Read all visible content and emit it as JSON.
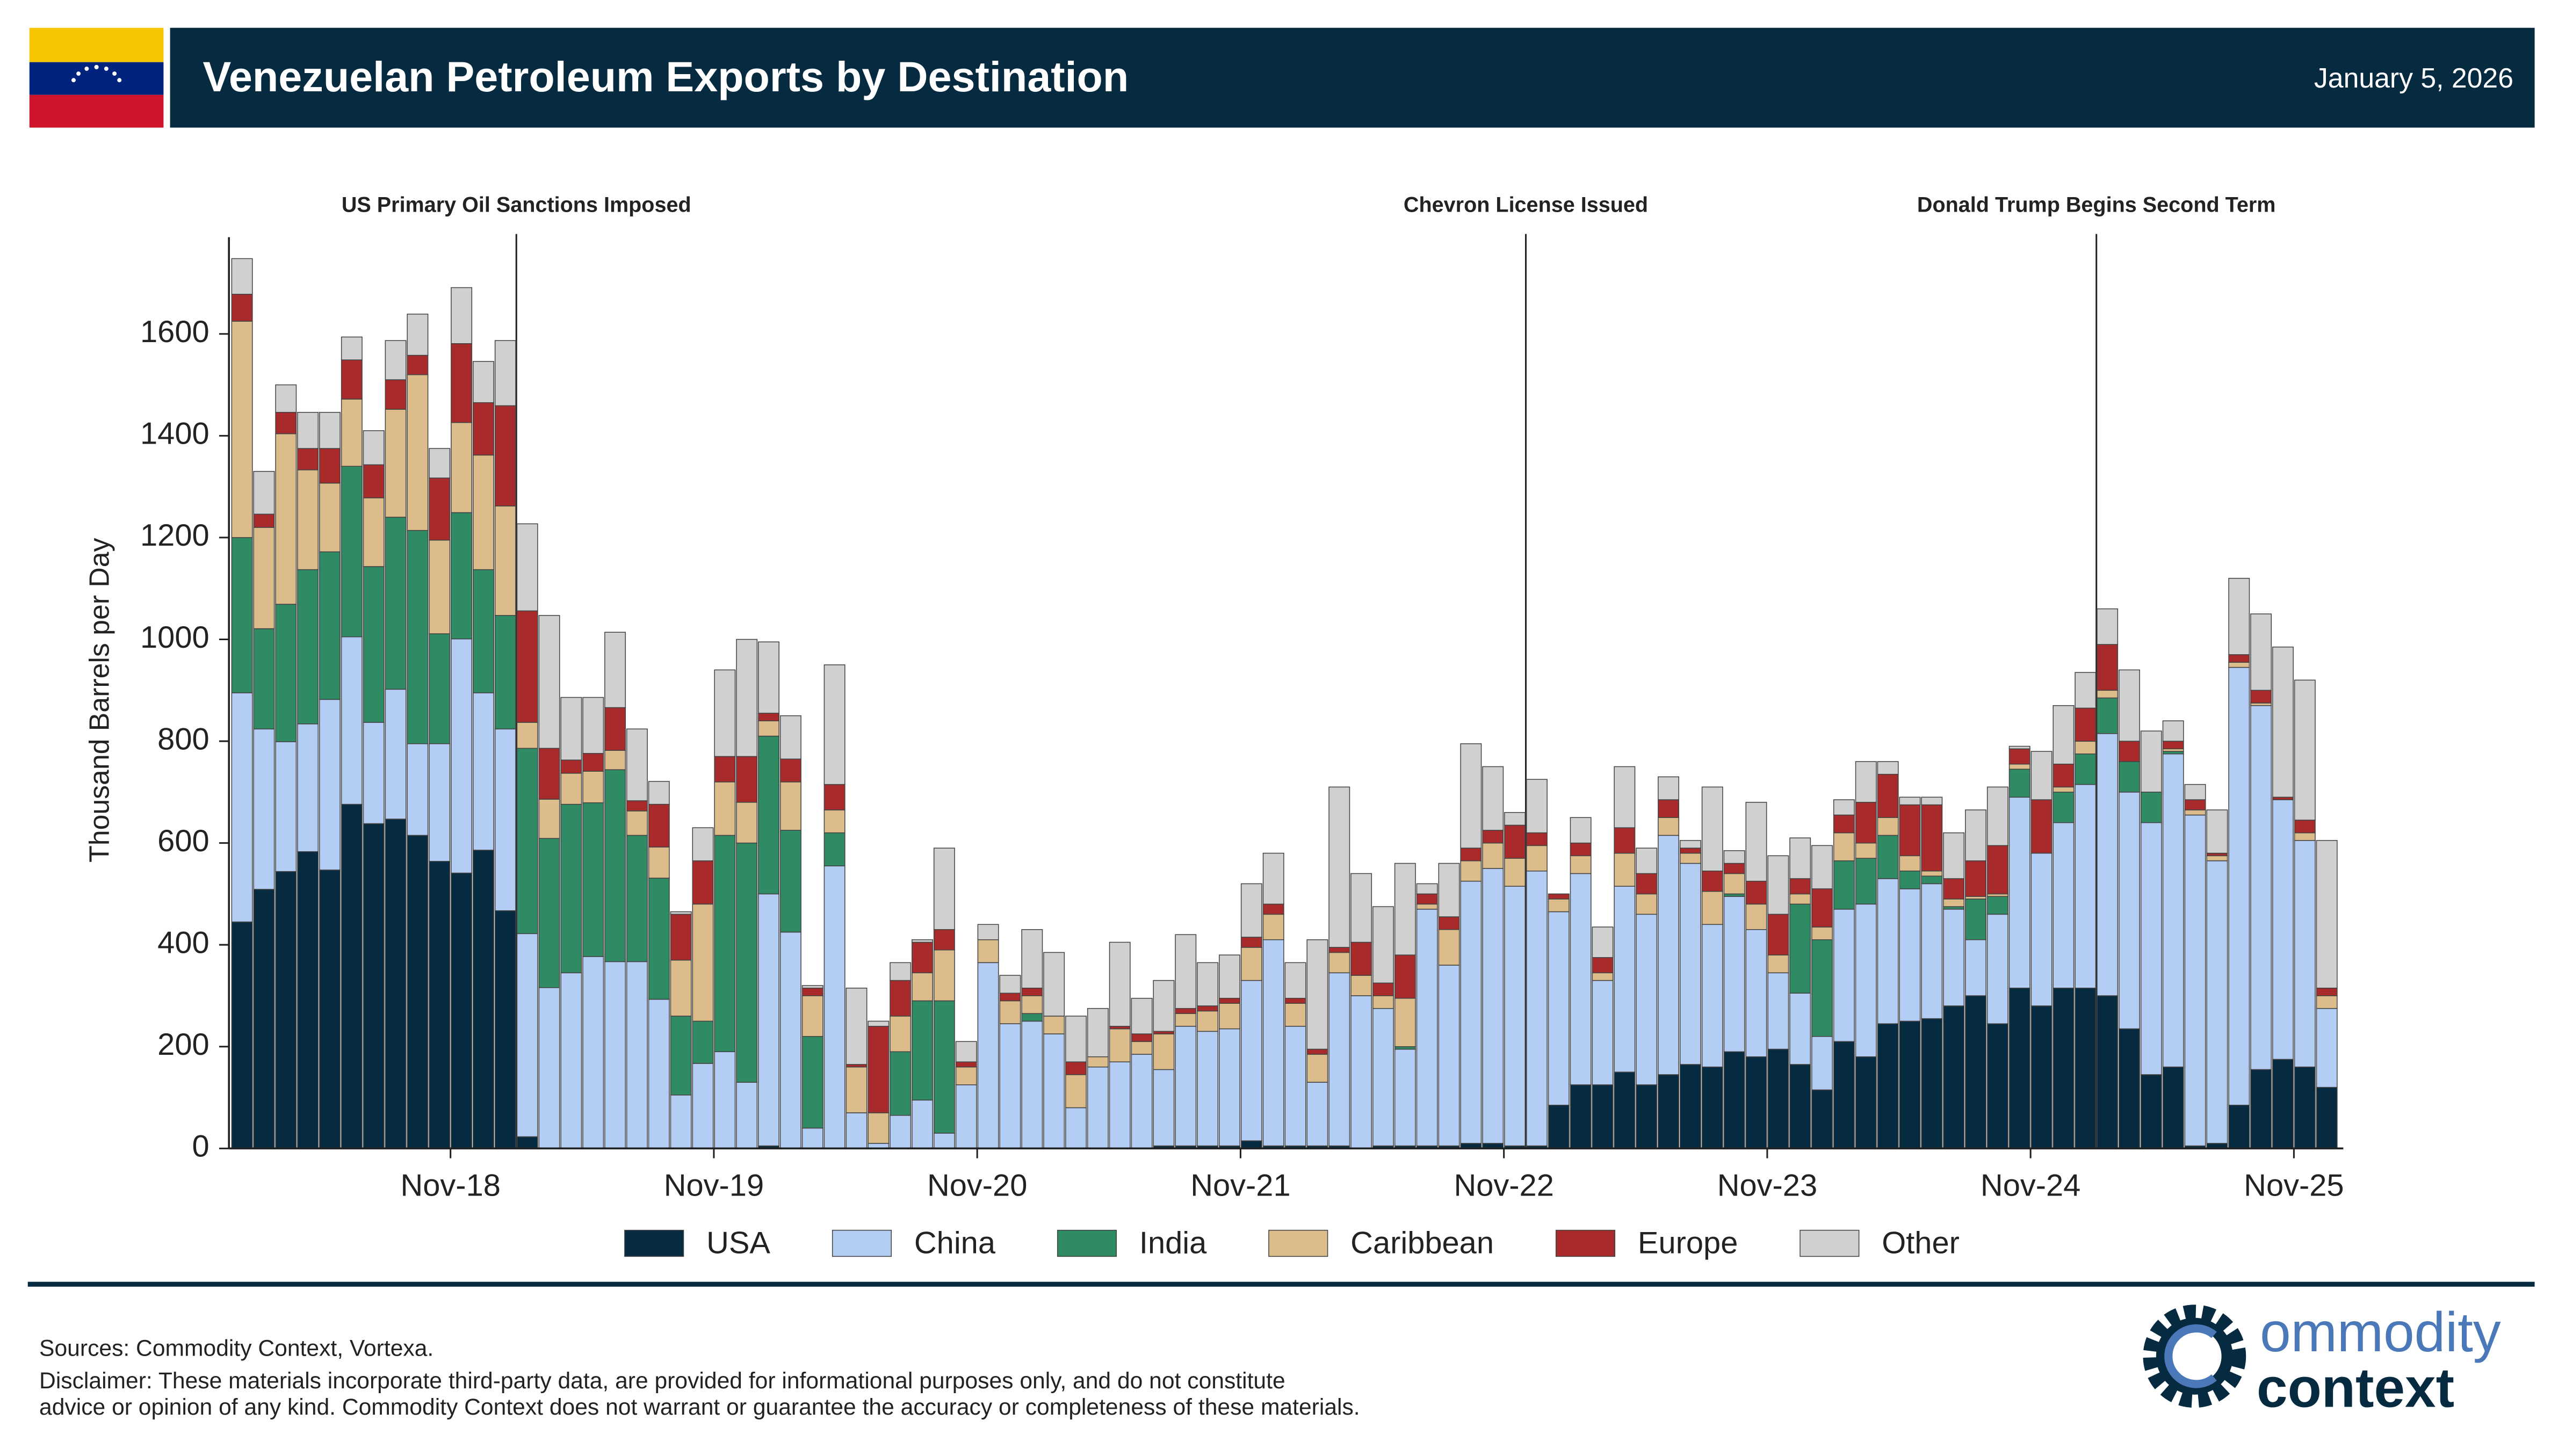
{
  "chart_data": {
    "type": "bar",
    "stacked": true,
    "title": "Venezuelan Petroleum Exports by Destination",
    "date": "January 5, 2026",
    "y_label": "Thousand Barrels per Day",
    "ylim": [
      0,
      1790
    ],
    "yticks": [
      0,
      200,
      400,
      600,
      800,
      1000,
      1200,
      1400,
      1600
    ],
    "x": [
      "2018-01",
      "2018-02",
      "2018-03",
      "2018-04",
      "2018-05",
      "2018-06",
      "2018-07",
      "2018-08",
      "2018-09",
      "2018-10",
      "2018-11",
      "2018-12",
      "2019-01",
      "2019-02",
      "2019-03",
      "2019-04",
      "2019-05",
      "2019-06",
      "2019-07",
      "2019-08",
      "2019-09",
      "2019-10",
      "2019-11",
      "2019-12",
      "2020-01",
      "2020-02",
      "2020-03",
      "2020-04",
      "2020-05",
      "2020-06",
      "2020-07",
      "2020-08",
      "2020-09",
      "2020-10",
      "2020-11",
      "2020-12",
      "2021-01",
      "2021-02",
      "2021-03",
      "2021-04",
      "2021-05",
      "2021-06",
      "2021-07",
      "2021-08",
      "2021-09",
      "2021-10",
      "2021-11",
      "2021-12",
      "2022-01",
      "2022-02",
      "2022-03",
      "2022-04",
      "2022-05",
      "2022-06",
      "2022-07",
      "2022-08",
      "2022-09",
      "2022-10",
      "2022-11",
      "2022-12",
      "2023-01",
      "2023-02",
      "2023-03",
      "2023-04",
      "2023-05",
      "2023-06",
      "2023-07",
      "2023-08",
      "2023-09",
      "2023-10",
      "2023-11",
      "2023-12",
      "2024-01",
      "2024-02",
      "2024-03",
      "2024-04",
      "2024-05",
      "2024-06",
      "2024-07",
      "2024-08",
      "2024-09",
      "2024-10",
      "2024-11",
      "2024-12",
      "2025-01",
      "2025-02",
      "2025-03",
      "2025-04",
      "2025-05",
      "2025-06",
      "2025-07",
      "2025-08",
      "2025-09",
      "2025-10",
      "2025-11",
      "2025-12"
    ],
    "xticks": [
      {
        "value": "2018-11",
        "label": "Nov-18"
      },
      {
        "value": "2019-11",
        "label": "Nov-19"
      },
      {
        "value": "2020-11",
        "label": "Nov-20"
      },
      {
        "value": "2021-11",
        "label": "Nov-21"
      },
      {
        "value": "2022-11",
        "label": "Nov-22"
      },
      {
        "value": "2023-11",
        "label": "Nov-23"
      },
      {
        "value": "2024-11",
        "label": "Nov-24"
      },
      {
        "value": "2025-11",
        "label": "Nov-25"
      }
    ],
    "legend": "bottom",
    "series": [
      {
        "name": "USA",
        "color": "#062a40",
        "values": [
          445,
          509,
          544,
          583,
          547,
          676,
          638,
          647,
          615,
          564,
          541,
          586,
          467,
          23,
          0,
          0,
          0,
          0,
          0,
          0,
          0,
          0,
          0,
          0,
          5,
          0,
          0,
          0,
          0,
          0,
          0,
          0,
          0,
          0,
          0,
          0,
          0,
          0,
          0,
          0,
          0,
          0,
          5,
          5,
          5,
          5,
          15,
          5,
          5,
          5,
          5,
          0,
          5,
          5,
          5,
          5,
          10,
          10,
          5,
          5,
          85,
          125,
          125,
          150,
          125,
          145,
          165,
          160,
          190,
          180,
          195,
          165,
          115,
          210,
          180,
          245,
          250,
          255,
          280,
          300,
          245,
          315,
          280,
          315,
          315,
          300,
          235,
          145,
          160,
          5,
          10,
          85,
          155,
          175,
          160,
          120
        ]
      },
      {
        "name": "China",
        "color": "#b3cdf5",
        "values": [
          450,
          315,
          255,
          251,
          335,
          329,
          199,
          255,
          180,
          231,
          460,
          309,
          357,
          399,
          316,
          345,
          377,
          367,
          367,
          293,
          105,
          167,
          190,
          130,
          495,
          425,
          40,
          555,
          70,
          10,
          65,
          95,
          30,
          125,
          365,
          245,
          250,
          225,
          80,
          160,
          170,
          185,
          150,
          235,
          225,
          230,
          315,
          405,
          235,
          125,
          340,
          300,
          270,
          190,
          465,
          355,
          515,
          540,
          510,
          540,
          380,
          415,
          205,
          365,
          335,
          470,
          395,
          280,
          305,
          250,
          150,
          140,
          105,
          260,
          300,
          285,
          260,
          265,
          190,
          110,
          215,
          375,
          300,
          325,
          400,
          515,
          465,
          495,
          615,
          650,
          555,
          860,
          715,
          510,
          445,
          155
        ]
      },
      {
        "name": "India",
        "color": "#2e8b63",
        "values": [
          305,
          197,
          270,
          303,
          290,
          335,
          306,
          338,
          419,
          216,
          248,
          242,
          223,
          364,
          293,
          331,
          302,
          377,
          248,
          238,
          155,
          83,
          425,
          470,
          310,
          200,
          180,
          65,
          0,
          0,
          125,
          195,
          260,
          0,
          0,
          0,
          15,
          0,
          0,
          0,
          0,
          0,
          0,
          0,
          0,
          0,
          0,
          0,
          0,
          0,
          0,
          0,
          0,
          5,
          0,
          0,
          0,
          0,
          0,
          0,
          0,
          0,
          0,
          0,
          0,
          0,
          0,
          0,
          5,
          0,
          0,
          175,
          190,
          95,
          90,
          85,
          35,
          15,
          5,
          80,
          35,
          55,
          0,
          60,
          60,
          70,
          60,
          60,
          5,
          0,
          0,
          0,
          0,
          0,
          0,
          0
        ]
      },
      {
        "name": "Caribbean",
        "color": "#dcbc8a",
        "values": [
          425,
          199,
          335,
          196,
          135,
          132,
          135,
          212,
          306,
          184,
          177,
          225,
          215,
          51,
          77,
          61,
          62,
          38,
          48,
          61,
          110,
          230,
          105,
          80,
          30,
          95,
          80,
          45,
          90,
          60,
          70,
          55,
          100,
          35,
          45,
          45,
          35,
          35,
          65,
          20,
          65,
          25,
          70,
          25,
          40,
          50,
          65,
          50,
          45,
          55,
          40,
          40,
          25,
          95,
          10,
          70,
          40,
          50,
          55,
          50,
          25,
          35,
          15,
          65,
          40,
          35,
          20,
          65,
          40,
          50,
          35,
          20,
          25,
          55,
          30,
          35,
          30,
          10,
          15,
          5,
          5,
          10,
          0,
          10,
          25,
          15,
          0,
          0,
          5,
          10,
          10,
          10,
          5,
          0,
          15,
          25
        ]
      },
      {
        "name": "Europe",
        "color": "#a82a2a",
        "values": [
          53,
          26,
          42,
          42,
          68,
          77,
          65,
          58,
          38,
          122,
          155,
          103,
          197,
          219,
          100,
          26,
          35,
          84,
          20,
          84,
          90,
          85,
          50,
          90,
          15,
          45,
          15,
          50,
          5,
          170,
          70,
          60,
          40,
          10,
          0,
          15,
          15,
          0,
          25,
          0,
          5,
          15,
          5,
          10,
          10,
          10,
          20,
          20,
          10,
          10,
          10,
          65,
          25,
          85,
          20,
          25,
          25,
          25,
          65,
          25,
          10,
          25,
          30,
          50,
          40,
          35,
          10,
          40,
          20,
          45,
          80,
          30,
          75,
          35,
          80,
          85,
          100,
          130,
          40,
          70,
          95,
          30,
          105,
          45,
          65,
          90,
          40,
          0,
          15,
          20,
          5,
          15,
          25,
          5,
          25,
          15
        ]
      },
      {
        "name": "Other",
        "color": "#d0d0d0",
        "values": [
          70,
          84,
          54,
          71,
          71,
          45,
          67,
          77,
          81,
          58,
          110,
          81,
          128,
          171,
          261,
          123,
          110,
          148,
          141,
          45,
          5,
          65,
          170,
          230,
          140,
          85,
          5,
          235,
          150,
          10,
          35,
          5,
          160,
          40,
          30,
          35,
          115,
          125,
          90,
          95,
          165,
          70,
          100,
          145,
          85,
          85,
          105,
          100,
          70,
          215,
          315,
          135,
          150,
          180,
          20,
          105,
          205,
          125,
          25,
          105,
          0,
          50,
          60,
          120,
          50,
          45,
          15,
          165,
          25,
          155,
          115,
          80,
          85,
          30,
          80,
          25,
          15,
          15,
          90,
          100,
          115,
          5,
          95,
          115,
          70,
          70,
          140,
          120,
          40,
          30,
          85,
          150,
          150,
          295,
          275,
          290
        ]
      }
    ],
    "annotations": [
      {
        "text": "US Primary Oil Sanctions Imposed",
        "x": "2019-02"
      },
      {
        "text": "Chevron License Issued",
        "x": "2022-12"
      },
      {
        "text": "Donald Trump Begins Second Term",
        "x": "2025-02"
      }
    ],
    "sources": "Sources: Commodity Context, Vortexa.",
    "disclaimer": [
      "Disclaimer: These materials incorporate third-party data, are provided for informational purposes only, and do not constitute",
      "advice or opinion of any kind. Commodity Context does not warrant or guarantee the accuracy or completeness of these materials."
    ],
    "logo": [
      "ommodity",
      "context"
    ]
  }
}
